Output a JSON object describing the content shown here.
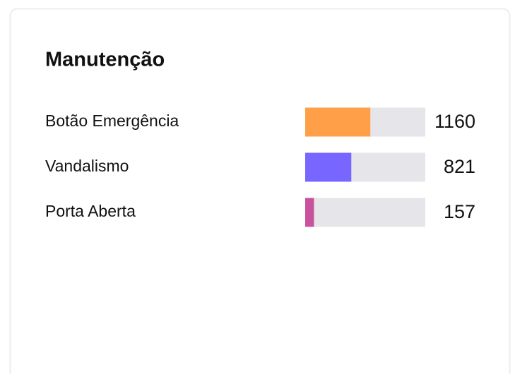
{
  "chart_data": {
    "type": "bar",
    "orientation": "horizontal",
    "title": "Manutenção",
    "categories": [
      "Botão Emergência",
      "Vandalismo",
      "Porta Aberta"
    ],
    "values": [
      1160,
      821,
      157
    ],
    "colors": [
      "#ff9f47",
      "#7766ff",
      "#c9529f"
    ],
    "track_color": "#e6e6ea"
  }
}
